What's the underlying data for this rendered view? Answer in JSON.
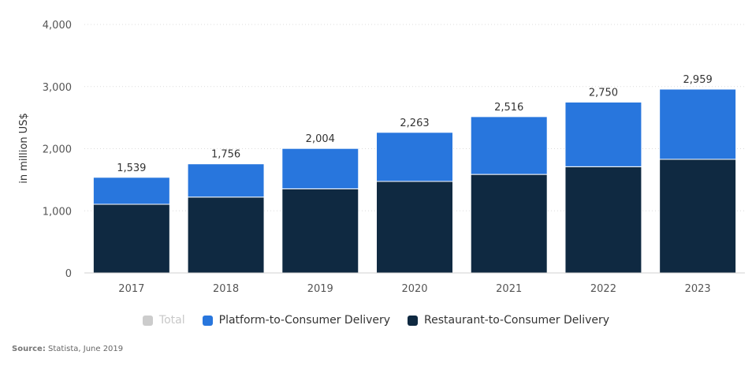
{
  "chart_data": {
    "type": "bar",
    "stacked": true,
    "categories": [
      "2017",
      "2018",
      "2019",
      "2020",
      "2021",
      "2022",
      "2023"
    ],
    "series": [
      {
        "name": "Total",
        "values": [
          1539,
          1756,
          2004,
          2263,
          2516,
          2750,
          2959
        ],
        "color": "#cccccc",
        "visible": false
      },
      {
        "name": "Platform-to-Consumer Delivery",
        "values": [
          434,
          535,
          650,
          790,
          930,
          1040,
          1130
        ],
        "color": "#2876dd"
      },
      {
        "name": "Restaurant-to-Consumer Delivery",
        "values": [
          1105,
          1221,
          1354,
          1473,
          1586,
          1710,
          1829
        ],
        "color": "#0f2941"
      }
    ],
    "totals_labels": [
      "1,539",
      "1,756",
      "2,004",
      "2,263",
      "2,516",
      "2,750",
      "2,959"
    ],
    "y_ticks": [
      "0",
      "1,000",
      "2,000",
      "3,000",
      "4,000"
    ],
    "ylabel": "in million US$",
    "ylim": [
      0,
      4000
    ],
    "grid": true,
    "legend_position": "bottom"
  },
  "source": {
    "label": "Source:",
    "text": "Statista, June 2019"
  }
}
